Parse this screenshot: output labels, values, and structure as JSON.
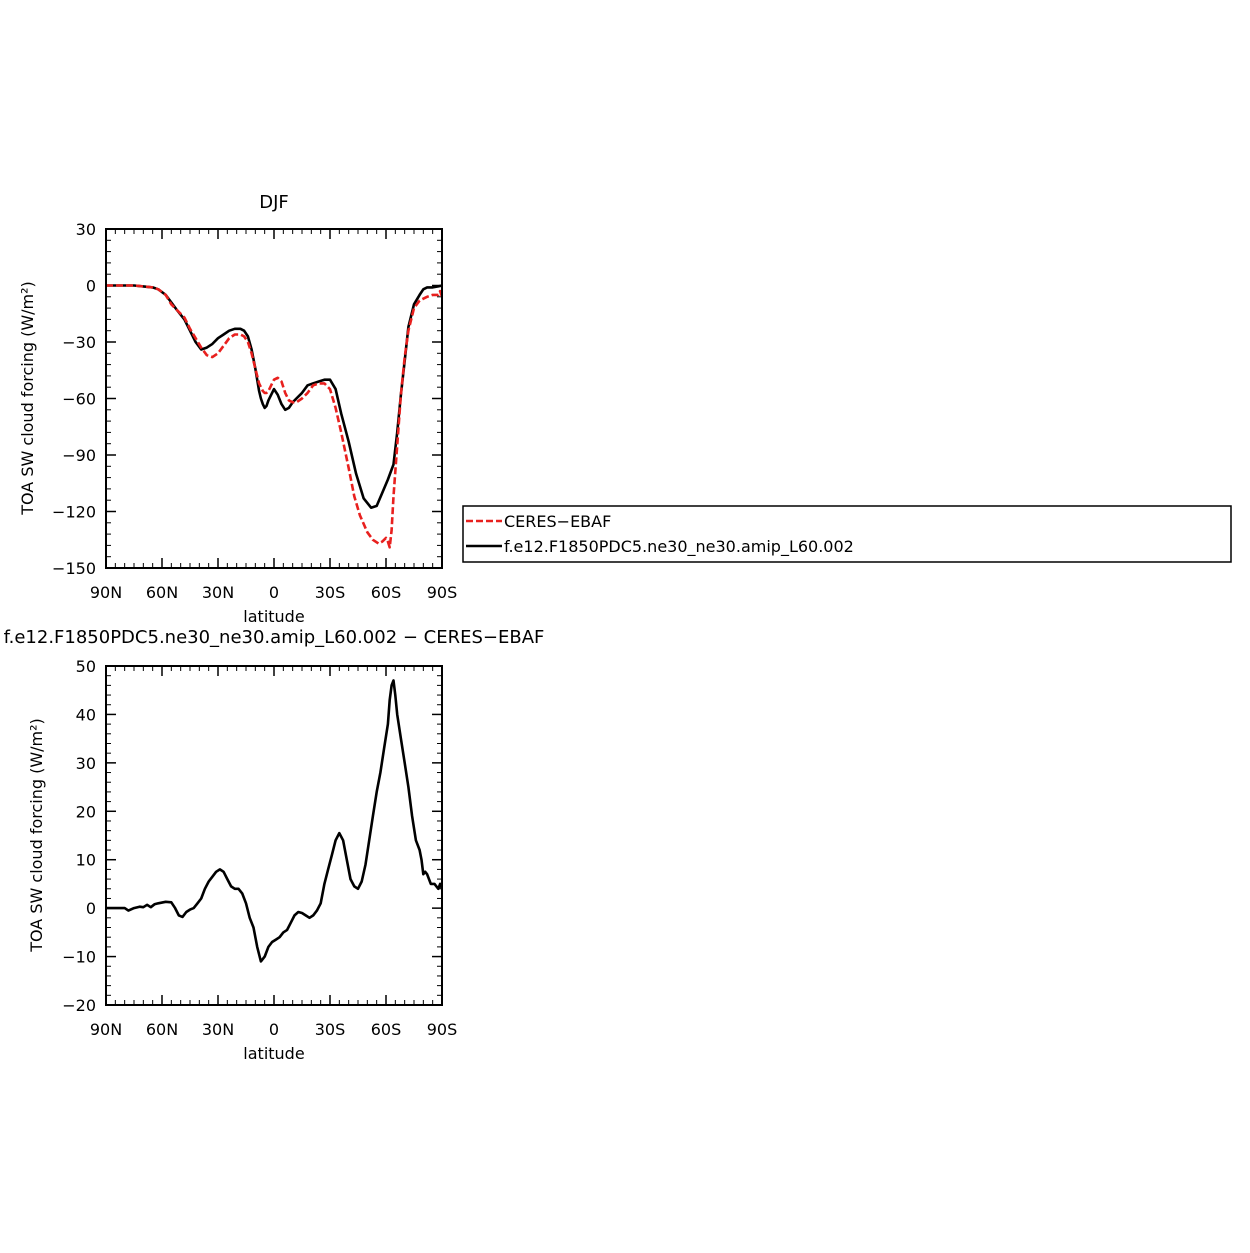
{
  "chart_data": [
    {
      "type": "line",
      "title": "DJF",
      "xlabel": "latitude",
      "ylabel": "TOA SW cloud forcing (W/m²)",
      "xlim": [
        90,
        -90
      ],
      "ylim": [
        -150,
        30
      ],
      "yticks": [
        30,
        0,
        -30,
        -60,
        -90,
        -120,
        -150
      ],
      "ytick_labels": [
        "30",
        "0",
        "−30",
        "−60",
        "−90",
        "−120",
        "−150"
      ],
      "xticks": [
        90,
        60,
        30,
        0,
        -30,
        -60,
        -90
      ],
      "xtick_labels": [
        "90N",
        "60N",
        "30N",
        "0",
        "30S",
        "60S",
        "90S"
      ],
      "legend": {
        "placement": "outside-right",
        "entries": [
          "CERES−EBAF",
          "f.e12.F1850PDC5.ne30_ne30.amip_L60.002"
        ]
      },
      "series": [
        {
          "name": "CERES−EBAF",
          "color": "#e8201e",
          "dashed": true,
          "x": [
            90,
            85,
            80,
            75,
            70,
            65,
            62,
            58,
            55,
            52,
            48,
            45,
            42,
            39,
            36,
            33,
            30,
            27,
            24,
            21,
            18,
            16,
            14,
            12,
            10,
            8,
            6,
            5,
            4,
            3,
            2,
            1,
            0,
            -2,
            -4,
            -6,
            -8,
            -10,
            -12,
            -15,
            -18,
            -21,
            -24,
            -27,
            -30,
            -33,
            -36,
            -40,
            -43,
            -46,
            -50,
            -53,
            -56,
            -58,
            -60,
            -61,
            -62,
            -63,
            -64,
            -66,
            -68,
            -70,
            -72,
            -75,
            -78,
            -80,
            -82,
            -85,
            -88,
            -89,
            -90
          ],
          "y": [
            0,
            0,
            0,
            0,
            -0.5,
            -1,
            -2,
            -5,
            -10,
            -13,
            -17,
            -23,
            -28,
            -33,
            -37,
            -38,
            -36,
            -32,
            -28,
            -26,
            -26,
            -27,
            -30,
            -36,
            -44,
            -52,
            -56,
            -57,
            -57,
            -56,
            -54,
            -52,
            -50,
            -49,
            -51,
            -57,
            -61,
            -62,
            -62,
            -60,
            -57,
            -53,
            -52,
            -52,
            -55,
            -65,
            -78,
            -97,
            -112,
            -122,
            -131,
            -135,
            -137,
            -136,
            -134,
            -136,
            -139,
            -130,
            -112,
            -85,
            -58,
            -38,
            -24,
            -12,
            -8,
            -7,
            -6,
            -5,
            -5,
            -3,
            -6
          ]
        },
        {
          "name": "f.e12.F1850PDC5.ne30_ne30.amip_L60.002",
          "color": "#000000",
          "dashed": false,
          "x": [
            90,
            85,
            80,
            75,
            70,
            65,
            62,
            58,
            55,
            52,
            48,
            45,
            42,
            39,
            36,
            33,
            30,
            27,
            24,
            21,
            18,
            16,
            14,
            12,
            10,
            8,
            7,
            6,
            5,
            4,
            3,
            2,
            0,
            -2,
            -4,
            -6,
            -8,
            -10,
            -12,
            -15,
            -18,
            -21,
            -24,
            -27,
            -30,
            -33,
            -36,
            -40,
            -44,
            -48,
            -52,
            -55,
            -58,
            -61,
            -64,
            -66,
            -68,
            -70,
            -72,
            -75,
            -78,
            -80,
            -82,
            -85,
            -88,
            -90
          ],
          "y": [
            0,
            0,
            0,
            0,
            -0.5,
            -1,
            -2,
            -5,
            -9,
            -13,
            -18,
            -24,
            -30,
            -34,
            -33,
            -31,
            -28,
            -26,
            -24,
            -23,
            -23,
            -24,
            -27,
            -34,
            -44,
            -56,
            -60,
            -63,
            -65,
            -64,
            -61,
            -59,
            -55,
            -58,
            -63,
            -66,
            -65,
            -62,
            -60,
            -57,
            -53,
            -52,
            -51,
            -50,
            -50,
            -55,
            -68,
            -83,
            -100,
            -113,
            -118,
            -117,
            -110,
            -103,
            -95,
            -78,
            -58,
            -40,
            -22,
            -10,
            -5,
            -2,
            -1,
            -1,
            -0.5,
            0
          ]
        }
      ]
    },
    {
      "type": "line",
      "title": "f.e12.F1850PDC5.ne30_ne30.amip_L60.002 − CERES−EBAF",
      "xlabel": "latitude",
      "ylabel": "TOA SW cloud forcing (W/m²)",
      "xlim": [
        90,
        -90
      ],
      "ylim": [
        -20,
        50
      ],
      "yticks": [
        50,
        40,
        30,
        20,
        10,
        0,
        -10,
        -20
      ],
      "ytick_labels": [
        "50",
        "40",
        "30",
        "20",
        "10",
        "0",
        "−10",
        "−20"
      ],
      "xticks": [
        90,
        60,
        30,
        0,
        -30,
        -60,
        -90
      ],
      "xtick_labels": [
        "90N",
        "60N",
        "30N",
        "0",
        "30S",
        "60S",
        "90S"
      ],
      "series": [
        {
          "color": "#000000",
          "dashed": false,
          "x": [
            90,
            85,
            80,
            78,
            75,
            72,
            70,
            68,
            66,
            64,
            62,
            58,
            55,
            53,
            51,
            49,
            47,
            45,
            43,
            41,
            39,
            37,
            35,
            33,
            31,
            29,
            27,
            25,
            23,
            21,
            19,
            17,
            15,
            13,
            11,
            9,
            7,
            5,
            3,
            1,
            -1,
            -3,
            -5,
            -7,
            -9,
            -11,
            -13,
            -15,
            -17,
            -19,
            -21,
            -23,
            -25,
            -27,
            -29,
            -31,
            -33,
            -35,
            -37,
            -39,
            -41,
            -43,
            -45,
            -47,
            -49,
            -51,
            -53,
            -55,
            -57,
            -59,
            -61,
            -62,
            -63,
            -64,
            -65,
            -66,
            -68,
            -70,
            -72,
            -74,
            -76,
            -78,
            -79,
            -80,
            -81,
            -82,
            -84,
            -86,
            -88,
            -89,
            -90
          ],
          "y": [
            0,
            0,
            0,
            -0.5,
            0,
            0.3,
            0.2,
            0.7,
            0.2,
            0.8,
            1,
            1.3,
            1.2,
            0,
            -1.5,
            -1.8,
            -0.8,
            -0.3,
            0,
            1,
            2,
            4,
            5.5,
            6.5,
            7.5,
            8,
            7.5,
            6,
            4.5,
            4,
            4,
            3,
            1,
            -2,
            -4,
            -8,
            -11,
            -10,
            -8,
            -7,
            -6.5,
            -6,
            -5,
            -4.5,
            -3,
            -1.5,
            -0.8,
            -1,
            -1.5,
            -2,
            -1.5,
            -0.5,
            1,
            5,
            8,
            11,
            14,
            15.5,
            14,
            10,
            6,
            4.5,
            4,
            5.5,
            9,
            14,
            19,
            24,
            28,
            33,
            38,
            43,
            46,
            47,
            44,
            40,
            35,
            30,
            25,
            19,
            14,
            12,
            10,
            7,
            7.5,
            7,
            5,
            5,
            4,
            5,
            4
          ]
        }
      ]
    }
  ]
}
